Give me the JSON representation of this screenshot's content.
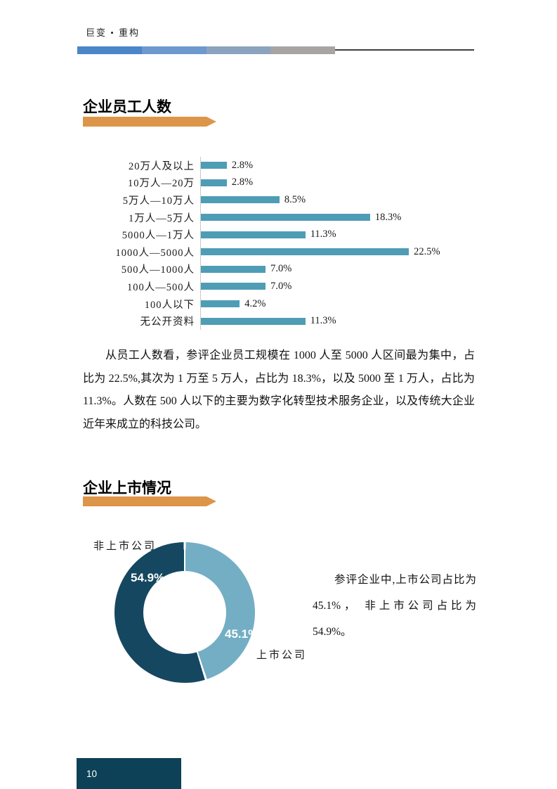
{
  "header": {
    "brand": "巨变 • 重构"
  },
  "sections": {
    "employees": {
      "title": "企业员工人数",
      "paragraph": "从员工人数看，参评企业员工规模在 1000 人至 5000 人区间最为集中，占比为 22.5%,其次为 1 万至 5 万人，占比为 18.3%，以及 5000 至 1 万人，占比为 11.3%。人数在 500 人以下的主要为数字化转型技术服务企业，以及传统大企业近年来成立的科技公司。"
    },
    "listing": {
      "title": "企业上市情况",
      "paragraph": "参评企业中,上市公司占比为 45.1%， 非上市公司占比为 54.9%。"
    }
  },
  "footer": {
    "page_number": "10"
  },
  "colors": {
    "accent_orange": "#DD9549",
    "bar_teal": "#4E9DB5",
    "axis_gray": "#c9c9c9",
    "donut_dark": "#154760",
    "donut_light": "#74AEC4",
    "footer_box": "#0D4157",
    "rule_segments": [
      "#4A86C8",
      "#6E98CE",
      "#8BA3BE",
      "#A6A5A2"
    ],
    "rule_line": "#3F3F3F"
  },
  "chart_data": [
    {
      "type": "bar",
      "orientation": "horizontal",
      "title": "",
      "xlabel": "",
      "ylabel": "",
      "xlim": [
        0,
        25
      ],
      "grid": false,
      "bar_color": "#4E9DB5",
      "categories": [
        "20万人及以上",
        "10万人—20万",
        "5万人—10万人",
        "1万人—5万人",
        "5000人—1万人",
        "1000人—5000人",
        "500人—1000人",
        "100人—500人",
        "100人以下",
        "无公开资料"
      ],
      "values": [
        2.8,
        2.8,
        8.5,
        18.3,
        11.3,
        22.5,
        7.0,
        7.0,
        4.2,
        11.3
      ],
      "value_labels": [
        "2.8%",
        "2.8%",
        "8.5%",
        "18.3%",
        "11.3%",
        "22.5%",
        "7.0%",
        "7.0%",
        "4.2%",
        "11.3%"
      ]
    },
    {
      "type": "pie",
      "donut": true,
      "start_angle_deg": 0,
      "direction": "clockwise",
      "slices": [
        {
          "label": "上市公司",
          "value": 45.1,
          "display": "45.1%",
          "color": "#74AEC4"
        },
        {
          "label": "非上市公司",
          "value": 54.9,
          "display": "54.9%",
          "color": "#154760"
        }
      ]
    }
  ]
}
